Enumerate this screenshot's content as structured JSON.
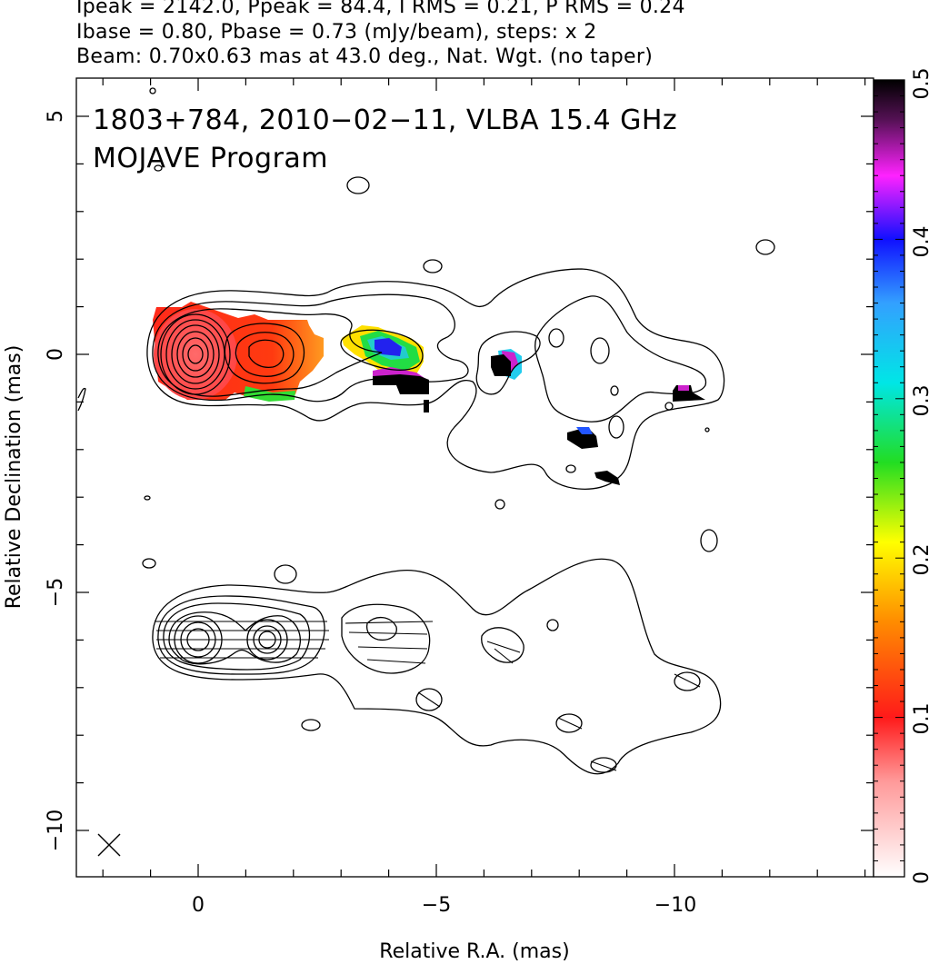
{
  "header": {
    "line1": "Ipeak = 2142.0, Ppeak = 84.4, I RMS = 0.21, P RMS = 0.24",
    "line2": "Ibase = 0.80, Pbase = 0.73 (mJy/beam), steps: x 2",
    "line3": "Beam: 0.70x0.63 mas at 43.0 deg., Nat. Wgt. (no taper)"
  },
  "map": {
    "title_line1": "1803+784, 2010−02−11, VLBA 15.4 GHz",
    "title_line2": "MOJAVE Program",
    "xlabel": "Relative R.A. (mas)",
    "ylabel": "Relative Declination (mas)",
    "xticks": [
      "0",
      "−5",
      "−10"
    ],
    "yticks": [
      "5",
      "0",
      "−5",
      "−10"
    ],
    "beam_marker": "X"
  },
  "colorbar": {
    "ticks": [
      "0",
      "0.1",
      "0.2",
      "0.3",
      "0.4",
      "0.5"
    ]
  },
  "colors": {
    "jet_core": "#ff5555",
    "jet_knot": "#ff3020",
    "high_frac": "#000000"
  }
}
